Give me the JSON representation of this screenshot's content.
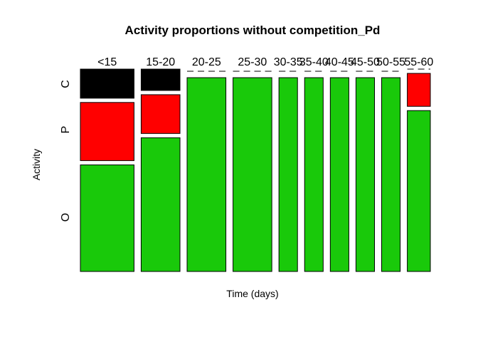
{
  "chart_data": {
    "type": "mosaic",
    "title": "Activity proportions without competition_Pd",
    "xlabel": "Time (days)",
    "ylabel": "Activity",
    "categories": [
      "<15",
      "15-20",
      "20-25",
      "25-30",
      "30-35",
      "35-40",
      "40-45",
      "45-50",
      "50-55",
      "55-60"
    ],
    "column_widths": [
      0.177,
      0.128,
      0.128,
      0.128,
      0.0612,
      0.0612,
      0.0612,
      0.0612,
      0.0612,
      0.076
    ],
    "levels": [
      "O",
      "P",
      "C"
    ],
    "series": [
      {
        "name": "O",
        "color": "#19c90a",
        "values": [
          0.55,
          0.69,
          1.0,
          1.0,
          1.0,
          1.0,
          1.0,
          1.0,
          1.0,
          0.83
        ]
      },
      {
        "name": "P",
        "color": "#ff0000",
        "values": [
          0.3,
          0.2,
          0.0,
          0.0,
          0.0,
          0.0,
          0.0,
          0.0,
          0.0,
          0.17
        ]
      },
      {
        "name": "C",
        "color": "#000000",
        "values": [
          0.15,
          0.11,
          0.0,
          0.0,
          0.0,
          0.0,
          0.0,
          0.0,
          0.0,
          0.0
        ]
      }
    ]
  }
}
